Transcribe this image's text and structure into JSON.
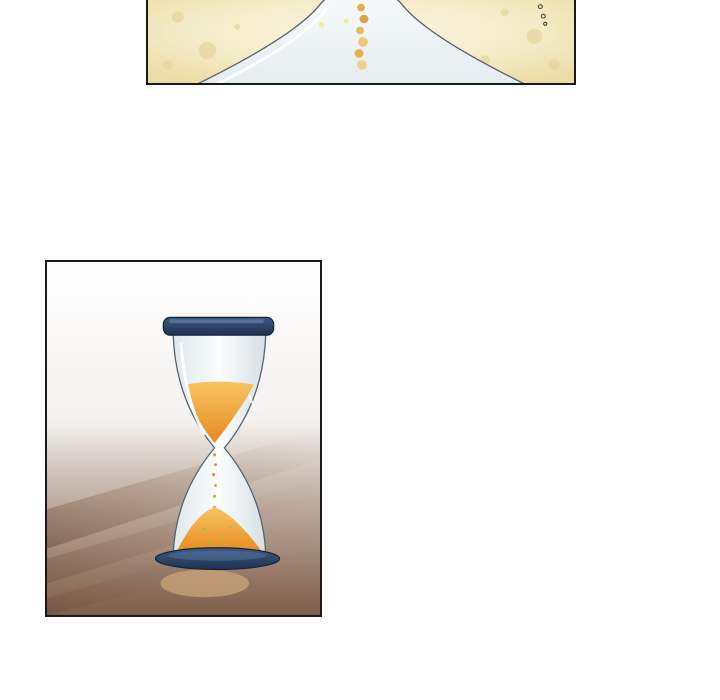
{
  "page": {
    "background": "#ffffff"
  },
  "panels": [
    {
      "id": "top",
      "subject": "sand-stream-closeup",
      "colors": {
        "background": "#f4ebc6",
        "glass": "#eef3f5",
        "sand": "#e6b04a",
        "border": "#1a1a1a"
      }
    },
    {
      "id": "bottom",
      "subject": "hourglass",
      "colors": {
        "backdrop_top": "#ffffff",
        "floor": "#8a6a55",
        "cap": "#2e4466",
        "glass": "#e9f0f2",
        "sand": "#f0a23a",
        "border": "#1a1a1a"
      }
    }
  ]
}
